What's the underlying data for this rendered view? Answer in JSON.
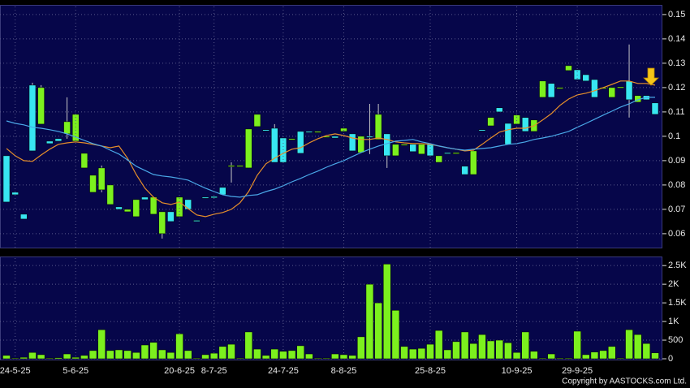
{
  "chart_data": [
    {
      "type": "candlestick",
      "up_color": "#7cf01e",
      "down_color": "#38e6f2",
      "grid": true,
      "ylim": [
        0.0543,
        0.1533
      ],
      "yticks": [
        0.06,
        0.07,
        0.08,
        0.09,
        0.1,
        0.11,
        0.12,
        0.13,
        0.14,
        0.15
      ],
      "open": [
        0.092,
        0.077,
        0.068,
        0.121,
        0.105,
        0.098,
        0.099,
        0.101,
        0.098,
        0.087,
        0.077,
        0.078,
        0.072,
        0.071,
        0.069,
        0.067,
        0.075,
        0.068,
        0.06,
        0.069,
        0.067,
        0.074,
        0.0655,
        0.075,
        0.0753,
        0.079,
        0.0877,
        0.0877,
        0.087,
        0.104,
        0.1027,
        0.1033,
        0.0993,
        0.0987,
        0.102,
        0.102,
        0.1017,
        0.0997,
        0.1,
        0.102,
        0.101,
        0.0933,
        0.1,
        0.0987,
        0.101,
        0.092,
        0.0963,
        0.0967,
        0.0927,
        0.0967,
        0.0893,
        0.0933,
        0.093,
        0.0877,
        0.0843,
        0.1027,
        0.1043,
        0.1117,
        0.1053,
        0.105,
        0.1077,
        0.102,
        0.116,
        0.1217,
        0.1197,
        0.127,
        0.1273,
        0.1253,
        0.1233,
        0.1197,
        0.116,
        0.12,
        0.1227,
        0.114,
        0.1167,
        0.1137
      ],
      "high": [
        0.092,
        0.077,
        0.068,
        0.122,
        0.121,
        0.098,
        0.099,
        0.116,
        0.109,
        0.093,
        0.084,
        0.088,
        0.08,
        0.071,
        0.07,
        0.074,
        0.075,
        0.075,
        0.069,
        0.069,
        0.075,
        0.074,
        0.0655,
        0.075,
        0.0753,
        0.079,
        0.0893,
        0.088,
        0.103,
        0.109,
        0.1027,
        0.105,
        0.0993,
        0.099,
        0.102,
        0.102,
        0.102,
        0.1,
        0.1,
        0.1033,
        0.101,
        0.1,
        0.1133,
        0.1133,
        0.101,
        0.0967,
        0.0967,
        0.0967,
        0.0967,
        0.0967,
        0.092,
        0.0933,
        0.0933,
        0.0877,
        0.094,
        0.1027,
        0.1077,
        0.1117,
        0.1053,
        0.1087,
        0.1077,
        0.1067,
        0.1227,
        0.1217,
        0.12,
        0.129,
        0.1273,
        0.1253,
        0.1233,
        0.12,
        0.12,
        0.1203,
        0.1377,
        0.1167,
        0.1167,
        0.1137
      ],
      "low": [
        0.073,
        0.076,
        0.066,
        0.094,
        0.105,
        0.097,
        0.098,
        0.099,
        0.098,
        0.087,
        0.077,
        0.077,
        0.072,
        0.07,
        0.069,
        0.067,
        0.074,
        0.068,
        0.058,
        0.065,
        0.067,
        0.07,
        0.065,
        0.0747,
        0.0747,
        0.076,
        0.081,
        0.0877,
        0.087,
        0.104,
        0.1023,
        0.0893,
        0.0893,
        0.0987,
        0.093,
        0.1017,
        0.1017,
        0.0997,
        0.0993,
        0.102,
        0.094,
        0.0933,
        0.0927,
        0.0987,
        0.087,
        0.092,
        0.0963,
        0.0937,
        0.0927,
        0.092,
        0.0893,
        0.093,
        0.093,
        0.0843,
        0.0843,
        0.1023,
        0.1043,
        0.11,
        0.0967,
        0.105,
        0.102,
        0.102,
        0.116,
        0.116,
        0.1197,
        0.127,
        0.1233,
        0.1227,
        0.116,
        0.1197,
        0.116,
        0.12,
        0.1077,
        0.114,
        0.115,
        0.109
      ],
      "close": [
        0.073,
        0.076,
        0.066,
        0.094,
        0.12,
        0.097,
        0.098,
        0.106,
        0.109,
        0.093,
        0.084,
        0.087,
        0.08,
        0.07,
        0.07,
        0.074,
        0.074,
        0.075,
        0.069,
        0.065,
        0.075,
        0.07,
        0.065,
        0.0747,
        0.0747,
        0.076,
        0.088,
        0.088,
        0.103,
        0.109,
        0.1023,
        0.0893,
        0.0893,
        0.099,
        0.093,
        0.1017,
        0.102,
        0.1,
        0.0993,
        0.1033,
        0.094,
        0.1,
        0.0997,
        0.109,
        0.092,
        0.0967,
        0.0967,
        0.0937,
        0.0967,
        0.092,
        0.092,
        0.093,
        0.0933,
        0.0843,
        0.094,
        0.1023,
        0.1077,
        0.11,
        0.0967,
        0.1087,
        0.102,
        0.1067,
        0.1227,
        0.116,
        0.12,
        0.129,
        0.1233,
        0.1227,
        0.116,
        0.12,
        0.12,
        0.1203,
        0.115,
        0.1167,
        0.115,
        0.109
      ],
      "series": [
        {
          "color": "#e8902a",
          "values": [
            0.095,
            0.092,
            0.09,
            0.0897,
            0.0923,
            0.0947,
            0.0967,
            0.0973,
            0.0977,
            0.0973,
            0.0967,
            0.096,
            0.0953,
            0.096,
            0.091,
            0.0843,
            0.0787,
            0.075,
            0.0727,
            0.072,
            0.073,
            0.0703,
            0.0677,
            0.067,
            0.068,
            0.0687,
            0.07,
            0.0727,
            0.0773,
            0.084,
            0.0887,
            0.091,
            0.093,
            0.0947,
            0.0953,
            0.0973,
            0.099,
            0.1003,
            0.101,
            0.1003,
            0.0993,
            0.0987,
            0.0987,
            0.0993,
            0.0987,
            0.0977,
            0.0973,
            0.097,
            0.097,
            0.0967,
            0.096,
            0.0953,
            0.0947,
            0.094,
            0.0943,
            0.0967,
            0.0993,
            0.1017,
            0.1027,
            0.1033,
            0.1033,
            0.1043,
            0.1067,
            0.1093,
            0.1127,
            0.1153,
            0.117,
            0.1177,
            0.1187,
            0.12,
            0.1213,
            0.1227,
            0.1227,
            0.1217,
            0.1217,
            0.121
          ]
        },
        {
          "color": "#4aa8e8",
          "values": [
            0.1063,
            0.1053,
            0.1047,
            0.1037,
            0.1033,
            0.1027,
            0.102,
            0.101,
            0.0997,
            0.0983,
            0.097,
            0.096,
            0.0943,
            0.0927,
            0.0903,
            0.0877,
            0.086,
            0.0843,
            0.0837,
            0.0833,
            0.0827,
            0.082,
            0.0803,
            0.0787,
            0.0773,
            0.076,
            0.0753,
            0.075,
            0.0757,
            0.076,
            0.0773,
            0.0783,
            0.0797,
            0.0813,
            0.0827,
            0.0843,
            0.0857,
            0.0873,
            0.0887,
            0.09,
            0.0917,
            0.0933,
            0.0947,
            0.096,
            0.097,
            0.098,
            0.0983,
            0.0987,
            0.0977,
            0.097,
            0.096,
            0.0953,
            0.0947,
            0.0943,
            0.0947,
            0.095,
            0.0953,
            0.096,
            0.0967,
            0.097,
            0.0977,
            0.0987,
            0.0993,
            0.1,
            0.101,
            0.102,
            0.1037,
            0.1053,
            0.107,
            0.1087,
            0.1103,
            0.112,
            0.1133,
            0.115,
            0.116,
            0.116
          ]
        }
      ]
    },
    {
      "type": "bar",
      "color": "#7cf01e",
      "grid": true,
      "annotation": "Copyright by AASTOCKS.com Ltd.",
      "ylim": [
        0,
        2700
      ],
      "yticks": [
        0,
        500,
        {
          "value": 1000,
          "label": "1K"
        },
        {
          "value": 1500,
          "label": "1.5K"
        },
        {
          "value": 2000,
          "label": "2K"
        },
        {
          "value": 2500,
          "label": "2.5K"
        }
      ],
      "categories": [
        null,
        "24-5-25",
        null,
        null,
        null,
        null,
        null,
        null,
        "5-6-25",
        null,
        null,
        null,
        null,
        null,
        null,
        null,
        null,
        null,
        null,
        null,
        "20-6-25",
        null,
        null,
        null,
        "8-7-25",
        null,
        null,
        null,
        null,
        null,
        null,
        null,
        "24-7-25",
        null,
        null,
        null,
        null,
        null,
        null,
        "8-8-25",
        null,
        null,
        null,
        null,
        null,
        null,
        null,
        null,
        null,
        "25-8-25",
        null,
        null,
        null,
        null,
        null,
        null,
        null,
        null,
        null,
        "10-9-25",
        null,
        null,
        null,
        null,
        null,
        null,
        "29-9-25",
        null,
        null,
        null,
        null,
        null,
        null,
        null,
        null,
        null
      ],
      "values": [
        90,
        20,
        40,
        170,
        110,
        20,
        30,
        130,
        40,
        90,
        220,
        780,
        220,
        240,
        220,
        170,
        370,
        440,
        240,
        170,
        670,
        220,
        20,
        110,
        150,
        330,
        390,
        20,
        720,
        260,
        90,
        260,
        200,
        220,
        350,
        130,
        20,
        20,
        130,
        110,
        90,
        590,
        2000,
        1500,
        2540,
        1300,
        330,
        260,
        280,
        390,
        760,
        240,
        460,
        720,
        410,
        650,
        480,
        500,
        430,
        170,
        720,
        200,
        20,
        130,
        20,
        20,
        740,
        110,
        180,
        220,
        330,
        20,
        780,
        650,
        410,
        160
      ]
    }
  ]
}
